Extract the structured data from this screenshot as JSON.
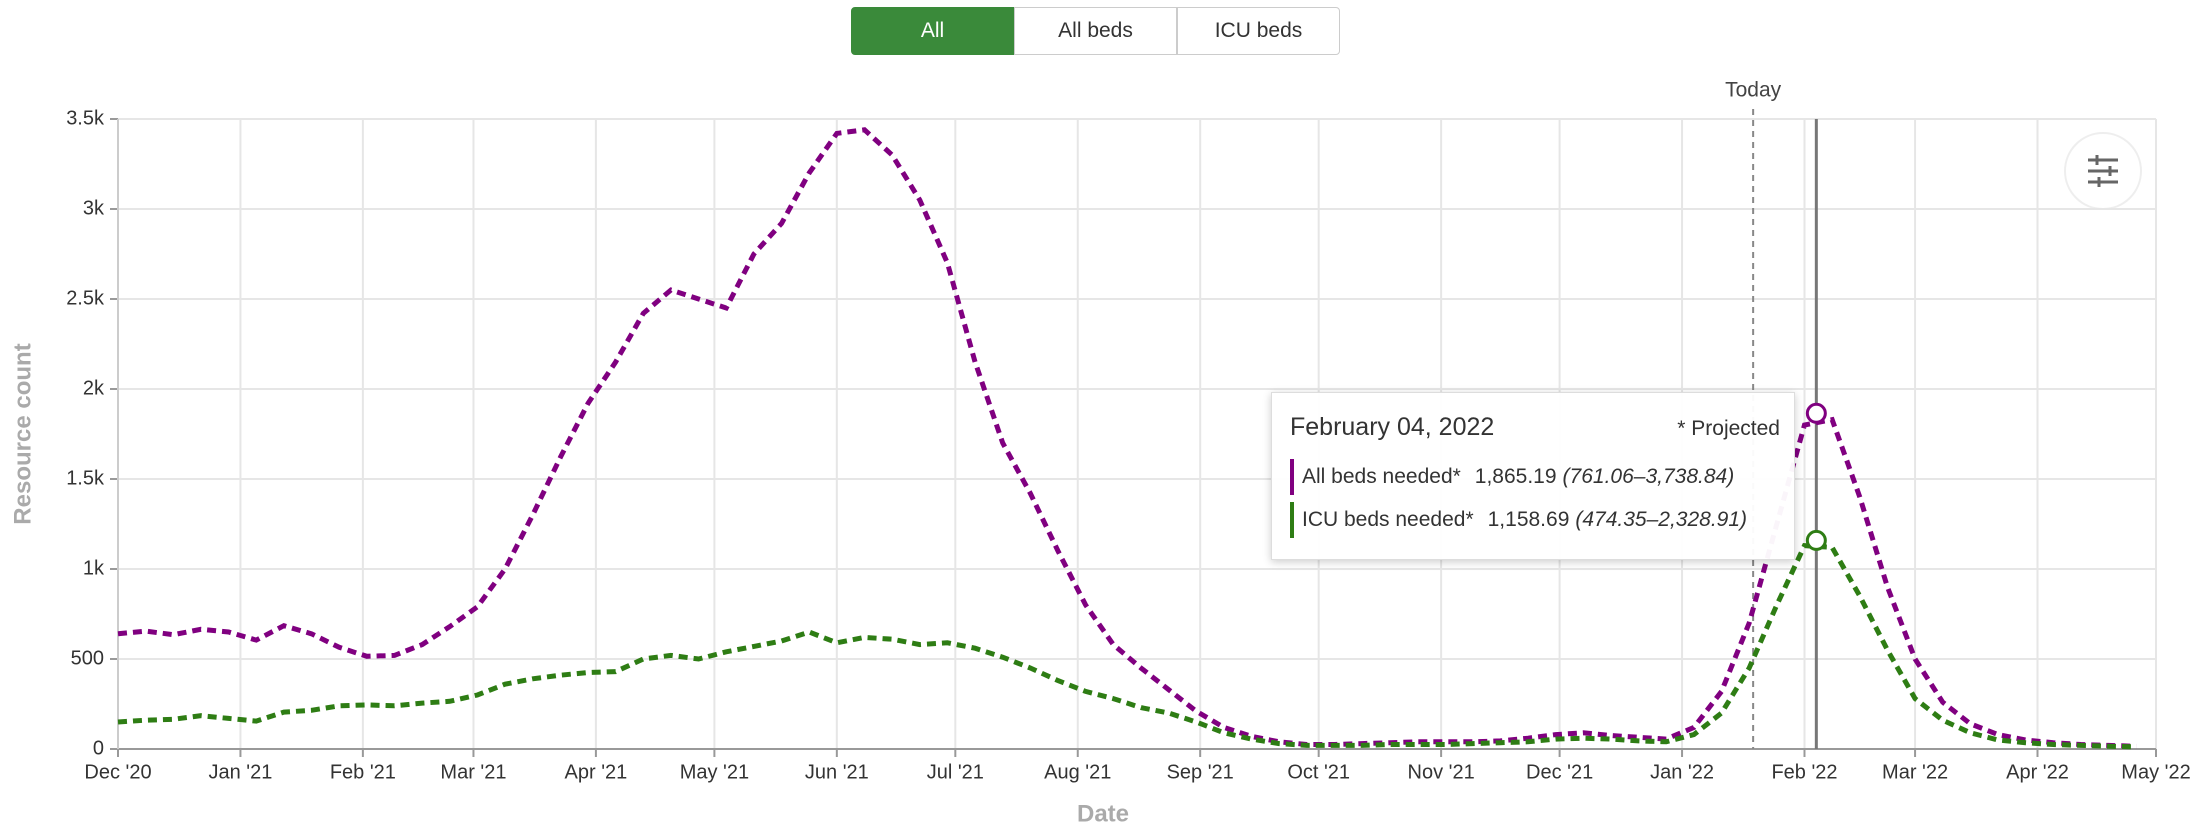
{
  "tabs": [
    "All",
    "All beds",
    "ICU beds"
  ],
  "chart_data": {
    "type": "line",
    "x_label": "Date",
    "y_label": "Resource count",
    "x": [
      0,
      7,
      14,
      21,
      28,
      35,
      42,
      49,
      56,
      63,
      70,
      77,
      84,
      91,
      98,
      105,
      112,
      119,
      126,
      133,
      140,
      147,
      154,
      161,
      168,
      175,
      182,
      189,
      196,
      203,
      210,
      217,
      224,
      231,
      238,
      245,
      252,
      259,
      266,
      273,
      280,
      287,
      294,
      301,
      308,
      315,
      322,
      329,
      336,
      343,
      350,
      357,
      364,
      371,
      378,
      385,
      392,
      399,
      406,
      413,
      420,
      427,
      434,
      441,
      448,
      455,
      462,
      469,
      476,
      483,
      490,
      497,
      504,
      511
    ],
    "series": [
      {
        "name": "All beds needed*",
        "color": "#800080",
        "values": [
          640,
          655,
          635,
          665,
          650,
          605,
          685,
          640,
          565,
          515,
          520,
          580,
          680,
          790,
          1000,
          1300,
          1620,
          1920,
          2150,
          2420,
          2550,
          2500,
          2450,
          2750,
          2920,
          3200,
          3420,
          3440,
          3300,
          3050,
          2700,
          2150,
          1700,
          1420,
          1100,
          800,
          580,
          450,
          330,
          210,
          120,
          70,
          40,
          25,
          25,
          30,
          35,
          40,
          40,
          40,
          45,
          60,
          80,
          90,
          75,
          65,
          55,
          120,
          320,
          700,
          1250,
          1800,
          1830,
          1400,
          900,
          500,
          260,
          140,
          80,
          50,
          35,
          25,
          20,
          15
        ]
      },
      {
        "name": "ICU beds needed*",
        "color": "#2e7d14",
        "values": [
          150,
          160,
          165,
          185,
          170,
          155,
          205,
          215,
          240,
          245,
          240,
          255,
          265,
          300,
          360,
          390,
          410,
          425,
          430,
          500,
          520,
          500,
          540,
          570,
          600,
          650,
          590,
          620,
          610,
          580,
          590,
          560,
          510,
          450,
          380,
          320,
          280,
          230,
          200,
          150,
          90,
          55,
          30,
          20,
          20,
          20,
          25,
          25,
          25,
          30,
          35,
          40,
          55,
          60,
          55,
          45,
          40,
          80,
          200,
          450,
          800,
          1130,
          1120,
          850,
          550,
          280,
          160,
          90,
          50,
          35,
          25,
          20,
          15,
          12
        ]
      }
    ],
    "xlim": [
      0,
      516
    ],
    "xticks": [
      {
        "value": 0,
        "label": "Dec '20"
      },
      {
        "value": 31,
        "label": "Jan '21"
      },
      {
        "value": 62,
        "label": "Feb '21"
      },
      {
        "value": 90,
        "label": "Mar '21"
      },
      {
        "value": 121,
        "label": "Apr '21"
      },
      {
        "value": 151,
        "label": "May '21"
      },
      {
        "value": 182,
        "label": "Jun '21"
      },
      {
        "value": 212,
        "label": "Jul '21"
      },
      {
        "value": 243,
        "label": "Aug '21"
      },
      {
        "value": 274,
        "label": "Sep '21"
      },
      {
        "value": 304,
        "label": "Oct '21"
      },
      {
        "value": 335,
        "label": "Nov '21"
      },
      {
        "value": 365,
        "label": "Dec '21"
      },
      {
        "value": 396,
        "label": "Jan '22"
      },
      {
        "value": 427,
        "label": "Feb '22"
      },
      {
        "value": 455,
        "label": "Mar '22"
      },
      {
        "value": 486,
        "label": "Apr '22"
      },
      {
        "value": 516,
        "label": "May '22"
      }
    ],
    "ylim": [
      0,
      3500
    ],
    "yticks": [
      0,
      500,
      {
        "value": 1000,
        "label": "1k"
      },
      {
        "value": 1500,
        "label": "1.5k"
      },
      {
        "value": 2000,
        "label": "2k"
      },
      {
        "value": 2500,
        "label": "2.5k"
      },
      {
        "value": 3000,
        "label": "3k"
      },
      {
        "value": 3500,
        "label": "3.5k"
      }
    ],
    "grid": true,
    "today": {
      "x": 414,
      "label": "Today"
    },
    "highlight": {
      "x": 430,
      "values": [
        1865.19,
        1158.69
      ]
    }
  },
  "tooltip": {
    "date": "February 04, 2022",
    "note": "* Projected",
    "rows": [
      {
        "name": "All beds needed*",
        "value": "1,865.19",
        "range": "(761.06–3,738.84)"
      },
      {
        "name": "ICU beds needed*",
        "value": "1,158.69",
        "range": "(474.35–2,328.91)"
      }
    ]
  }
}
